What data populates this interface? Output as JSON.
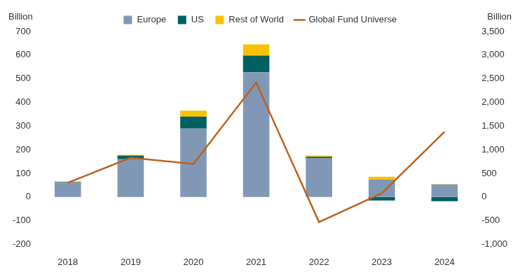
{
  "chart_data": {
    "type": "bar",
    "stacked": true,
    "categories": [
      "2018",
      "2019",
      "2020",
      "2021",
      "2022",
      "2023",
      "2024"
    ],
    "series": [
      {
        "name": "Europe",
        "color": "#8098b6",
        "values": [
          60,
          160,
          290,
          528,
          165,
          73,
          53
        ]
      },
      {
        "name": "US",
        "color": "#005f61",
        "values": [
          3,
          15,
          50,
          70,
          5,
          -15,
          -18
        ]
      },
      {
        "name": "Rest of World",
        "color": "#f7c200",
        "values": [
          3,
          3,
          25,
          47,
          5,
          13,
          2
        ]
      },
      {
        "name": "Global Fund Universe",
        "type": "line",
        "axis": "y2",
        "color": "#c0601a",
        "values": [
          300,
          830,
          700,
          2420,
          -530,
          80,
          1380
        ]
      }
    ],
    "ylabel": "Billion",
    "y2label": "Billion",
    "ylim": [
      -200,
      700
    ],
    "yticks": [
      -200,
      -100,
      0,
      100,
      200,
      300,
      400,
      500,
      600,
      700
    ],
    "y2lim": [
      -1000,
      3500
    ],
    "y2ticks": [
      {
        "value": -1000,
        "label": "-1,000"
      },
      -500,
      0,
      500,
      {
        "value": 1000,
        "label": "1,000"
      },
      {
        "value": 1500,
        "label": "1,500"
      },
      {
        "value": 2000,
        "label": "2,000"
      },
      {
        "value": 2500,
        "label": "2,500"
      },
      {
        "value": 3000,
        "label": "3,000"
      },
      {
        "value": 3500,
        "label": "3,500"
      }
    ],
    "grid": false,
    "legend": "top"
  }
}
